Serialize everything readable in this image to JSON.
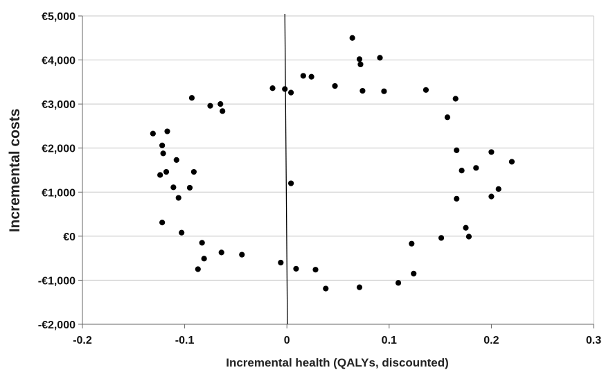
{
  "chart_data": {
    "type": "scatter",
    "title": "",
    "xlabel": "Incremental health (QALYs, discounted)",
    "ylabel": "Incremental costs",
    "xlim": [
      -0.2,
      0.3
    ],
    "ylim": [
      -2000,
      5000
    ],
    "x_ticks": [
      -0.2,
      -0.1,
      0,
      0.1,
      0.2,
      0.3
    ],
    "x_tick_labels": [
      "-0.2",
      "-0.1",
      "0",
      "0.1",
      "0.2",
      "0.3"
    ],
    "y_ticks": [
      -2000,
      -1000,
      0,
      1000,
      2000,
      3000,
      4000,
      5000
    ],
    "y_tick_labels": [
      "-€2,000",
      "-€1,000",
      "€0",
      "€1,000",
      "€2,000",
      "€3,000",
      "€4,000",
      "€5,000"
    ],
    "grid": "horizontal",
    "legend": "none",
    "marker_color": "#000000",
    "points": [
      [
        0.064,
        4500
      ],
      [
        0.071,
        4020
      ],
      [
        0.091,
        4050
      ],
      [
        0.072,
        3900
      ],
      [
        0.016,
        3640
      ],
      [
        0.024,
        3620
      ],
      [
        -0.093,
        3140
      ],
      [
        -0.131,
        2330
      ],
      [
        -0.122,
        2060
      ],
      [
        -0.121,
        1880
      ],
      [
        -0.117,
        2380
      ],
      [
        -0.118,
        1460
      ],
      [
        -0.124,
        1390
      ],
      [
        -0.108,
        1730
      ],
      [
        -0.111,
        1110
      ],
      [
        -0.106,
        870
      ],
      [
        -0.122,
        310
      ],
      [
        -0.103,
        80
      ],
      [
        -0.083,
        -150
      ],
      [
        -0.087,
        -750
      ],
      [
        -0.081,
        -510
      ],
      [
        -0.064,
        -370
      ],
      [
        -0.044,
        -420
      ],
      [
        -0.006,
        -600
      ],
      [
        0.009,
        -740
      ],
      [
        0.028,
        -760
      ],
      [
        0.038,
        -1190
      ],
      [
        0.071,
        -1160
      ],
      [
        0.109,
        -1060
      ],
      [
        0.124,
        -850
      ],
      [
        0.122,
        -170
      ],
      [
        0.151,
        -40
      ],
      [
        0.178,
        -10
      ],
      [
        0.175,
        190
      ],
      [
        0.166,
        850
      ],
      [
        0.2,
        900
      ],
      [
        0.207,
        1070
      ],
      [
        0.22,
        1690
      ],
      [
        0.2,
        1910
      ],
      [
        0.185,
        1550
      ],
      [
        0.171,
        1490
      ],
      [
        0.166,
        1950
      ],
      [
        0.165,
        3120
      ],
      [
        0.157,
        2700
      ],
      [
        0.136,
        3320
      ],
      [
        0.095,
        3290
      ],
      [
        0.074,
        3300
      ],
      [
        0.047,
        3410
      ],
      [
        -0.014,
        3360
      ],
      [
        -0.002,
        3340
      ],
      [
        0.004,
        3260
      ],
      [
        -0.065,
        3000
      ],
      [
        -0.075,
        2960
      ],
      [
        -0.063,
        2840
      ],
      [
        -0.091,
        1460
      ],
      [
        -0.095,
        1100
      ],
      [
        0.004,
        1200
      ]
    ]
  }
}
